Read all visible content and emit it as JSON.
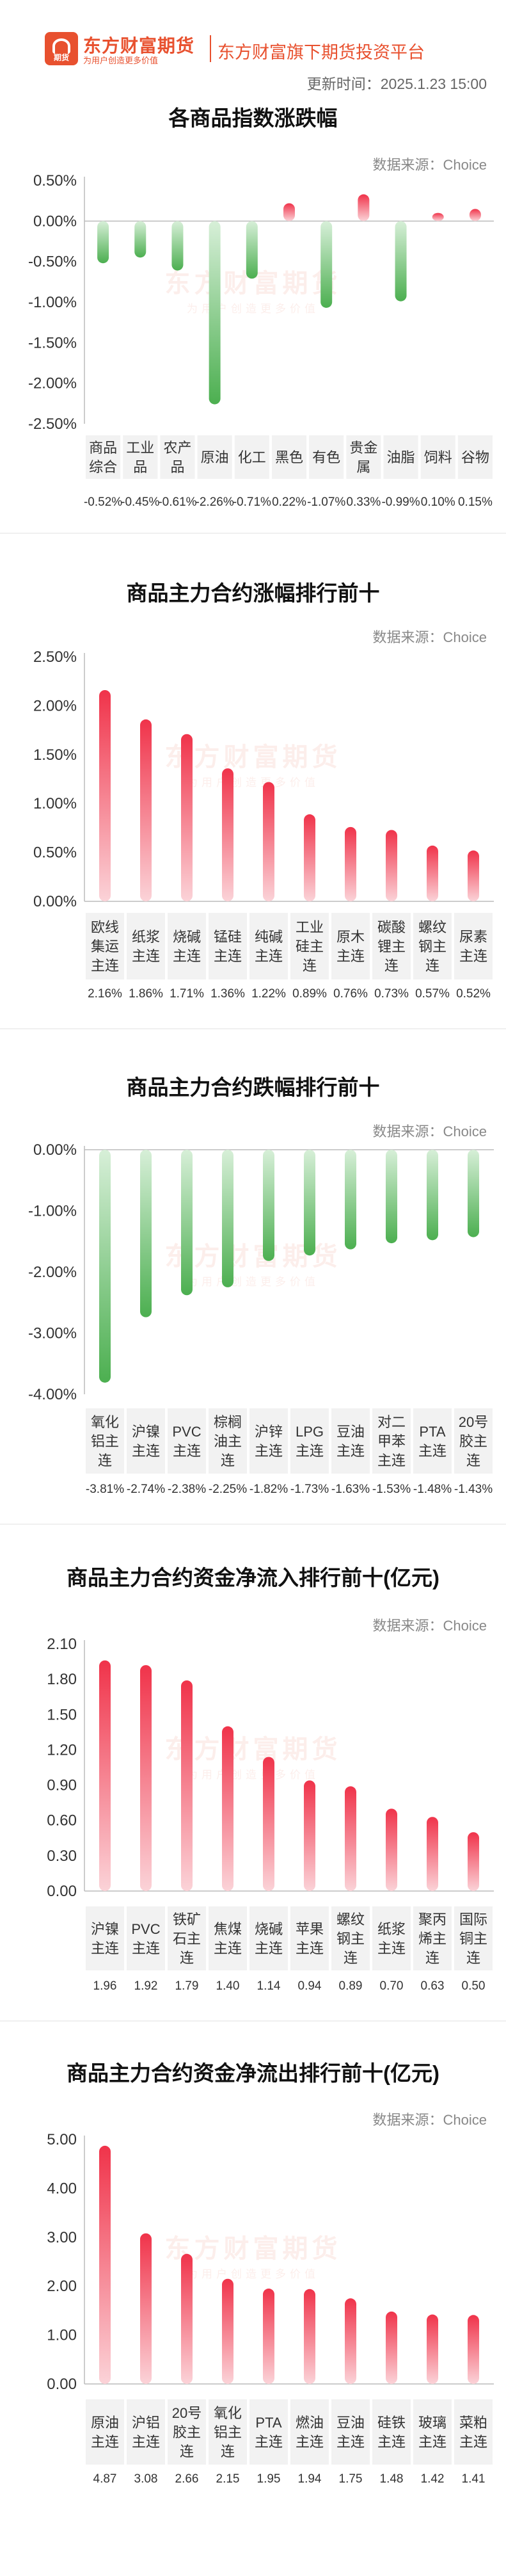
{
  "header": {
    "logo_mini_text": "期货",
    "brand_name": "东方财富期货",
    "brand_slogan": "为用户创造更多价值",
    "platform_name": "东方财富旗下期货投资平台",
    "update_time": "更新时间：2025.1.23 15:00"
  },
  "watermark": {
    "main": "东方财富期货",
    "sub": "为用户创造更多价值"
  },
  "colors": {
    "brand": "#e8512f",
    "up": "#f0334a",
    "down": "#4caf50",
    "axis_text": "#333333",
    "label_bg": "#f2f2f2"
  },
  "chart_data": [
    {
      "type": "bar",
      "title": "各商品指数涨跌幅",
      "source": "数据来源：Choice",
      "unit": "percent",
      "categories": [
        "商品\n综合",
        "工业\n品",
        "农产\n品",
        "原油",
        "化工",
        "黑色",
        "有色",
        "贵金\n属",
        "油脂",
        "饲料",
        "谷物"
      ],
      "values": [
        -0.52,
        -0.45,
        -0.61,
        -2.26,
        -0.71,
        0.22,
        -1.07,
        0.33,
        -0.99,
        0.1,
        0.15
      ],
      "value_labels": [
        "-0.52%",
        "-0.45%",
        "-0.61%",
        "-2.26%",
        "-0.71%",
        "0.22%",
        "-1.07%",
        "0.33%",
        "-0.99%",
        "0.10%",
        "0.15%"
      ],
      "yticks": [
        0.5,
        0.0,
        -0.5,
        -1.0,
        -1.5,
        -2.0,
        -2.5
      ],
      "ytick_labels": [
        "0.50%",
        "0.00%",
        "-0.50%",
        "-1.00%",
        "-1.50%",
        "-2.00%",
        "-2.50%"
      ],
      "ylim": [
        -2.5,
        0.5
      ]
    },
    {
      "type": "bar",
      "title": "商品主力合约涨幅排行前十",
      "source": "数据来源：Choice",
      "unit": "percent",
      "categories": [
        "欧线\n集运\n主连",
        "纸浆\n主连",
        "烧碱\n主连",
        "锰硅\n主连",
        "纯碱\n主连",
        "工业\n硅主\n连",
        "原木\n主连",
        "碳酸\n锂主\n连",
        "螺纹\n钢主\n连",
        "尿素\n主连"
      ],
      "values": [
        2.16,
        1.86,
        1.71,
        1.36,
        1.22,
        0.89,
        0.76,
        0.73,
        0.57,
        0.52
      ],
      "value_labels": [
        "2.16%",
        "1.86%",
        "1.71%",
        "1.36%",
        "1.22%",
        "0.89%",
        "0.76%",
        "0.73%",
        "0.57%",
        "0.52%"
      ],
      "yticks": [
        2.5,
        2.0,
        1.5,
        1.0,
        0.5,
        0.0
      ],
      "ytick_labels": [
        "2.50%",
        "2.00%",
        "1.50%",
        "1.00%",
        "0.50%",
        "0.00%"
      ],
      "ylim": [
        0,
        2.5
      ]
    },
    {
      "type": "bar",
      "title": "商品主力合约跌幅排行前十",
      "source": "数据来源：Choice",
      "unit": "percent",
      "categories": [
        "氧化\n铝主\n连",
        "沪镍\n主连",
        "PVC\n主连",
        "棕榈\n油主\n连",
        "沪锌\n主连",
        "LPG\n主连",
        "豆油\n主连",
        "对二\n甲苯\n主连",
        "PTA\n主连",
        "20号\n胶主\n连"
      ],
      "values": [
        -3.81,
        -2.74,
        -2.38,
        -2.25,
        -1.82,
        -1.73,
        -1.63,
        -1.53,
        -1.48,
        -1.43
      ],
      "value_labels": [
        "-3.81%",
        "-2.74%",
        "-2.38%",
        "-2.25%",
        "-1.82%",
        "-1.73%",
        "-1.63%",
        "-1.53%",
        "-1.48%",
        "-1.43%"
      ],
      "yticks": [
        0.0,
        -1.0,
        -2.0,
        -3.0,
        -4.0
      ],
      "ytick_labels": [
        "0.00%",
        "-1.00%",
        "-2.00%",
        "-3.00%",
        "-4.00%"
      ],
      "ylim": [
        -4.0,
        0
      ]
    },
    {
      "type": "bar",
      "title": "商品主力合约资金净流入排行前十(亿元)",
      "source": "数据来源：Choice",
      "unit": "亿元",
      "categories": [
        "沪镍\n主连",
        "PVC\n主连",
        "铁矿\n石主\n连",
        "焦煤\n主连",
        "烧碱\n主连",
        "苹果\n主连",
        "螺纹\n钢主\n连",
        "纸浆\n主连",
        "聚丙\n烯主\n连",
        "国际\n铜主\n连"
      ],
      "values": [
        1.96,
        1.92,
        1.79,
        1.4,
        1.14,
        0.94,
        0.89,
        0.7,
        0.63,
        0.5
      ],
      "value_labels": [
        "1.96",
        "1.92",
        "1.79",
        "1.40",
        "1.14",
        "0.94",
        "0.89",
        "0.70",
        "0.63",
        "0.50"
      ],
      "yticks": [
        2.1,
        1.8,
        1.5,
        1.2,
        0.9,
        0.6,
        0.3,
        0.0
      ],
      "ytick_labels": [
        "2.10",
        "1.80",
        "1.50",
        "1.20",
        "0.90",
        "0.60",
        "0.30",
        "0.00"
      ],
      "ylim": [
        0,
        2.1
      ]
    },
    {
      "type": "bar",
      "title": "商品主力合约资金净流出排行前十(亿元)",
      "source": "数据来源：Choice",
      "unit": "亿元",
      "categories": [
        "原油\n主连",
        "沪铝\n主连",
        "20号\n胶主\n连",
        "氧化\n铝主\n连",
        "PTA\n主连",
        "燃油\n主连",
        "豆油\n主连",
        "硅铁\n主连",
        "玻璃\n主连",
        "菜粕\n主连"
      ],
      "values": [
        4.87,
        3.08,
        2.66,
        2.15,
        1.95,
        1.94,
        1.75,
        1.48,
        1.42,
        1.41
      ],
      "value_labels": [
        "4.87",
        "3.08",
        "2.66",
        "2.15",
        "1.95",
        "1.94",
        "1.75",
        "1.48",
        "1.42",
        "1.41"
      ],
      "yticks": [
        5.0,
        4.0,
        3.0,
        2.0,
        1.0,
        0.0
      ],
      "ytick_labels": [
        "5.00",
        "4.00",
        "3.00",
        "2.00",
        "1.00",
        "0.00"
      ],
      "ylim": [
        0,
        5.0
      ]
    }
  ]
}
